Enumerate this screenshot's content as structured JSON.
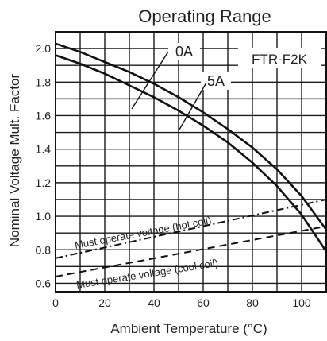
{
  "chart_data": {
    "type": "line",
    "title": "Operating Range",
    "xlabel": "Ambient Temperature (°C)",
    "ylabel": "Nominal Voltage Mult. Factor",
    "xlim": [
      0,
      110
    ],
    "ylim": [
      0.55,
      2.1
    ],
    "x_ticks": [
      0,
      20,
      40,
      60,
      80,
      100
    ],
    "y_ticks": [
      0.6,
      0.8,
      1.0,
      1.2,
      1.4,
      1.6,
      1.8,
      2.0
    ],
    "grid": true,
    "annotation": "FTR-F2K",
    "series": [
      {
        "name": "0A",
        "x": [
          0,
          10,
          20,
          30,
          40,
          50,
          60,
          70,
          80,
          90,
          100,
          110
        ],
        "y": [
          2.03,
          1.98,
          1.92,
          1.86,
          1.79,
          1.71,
          1.62,
          1.52,
          1.41,
          1.28,
          1.12,
          0.92
        ]
      },
      {
        "name": "5A",
        "x": [
          0,
          10,
          20,
          30,
          40,
          50,
          60,
          70,
          80,
          90,
          100,
          110
        ],
        "y": [
          1.96,
          1.91,
          1.85,
          1.78,
          1.71,
          1.63,
          1.54,
          1.44,
          1.32,
          1.18,
          1.01,
          0.79
        ]
      },
      {
        "name": "Must operate voltage (hot coil)",
        "x": [
          0,
          110
        ],
        "y": [
          0.75,
          1.1
        ]
      },
      {
        "name": "Must operate voltage (cool coil)",
        "x": [
          0,
          110
        ],
        "y": [
          0.64,
          0.94
        ]
      }
    ]
  }
}
